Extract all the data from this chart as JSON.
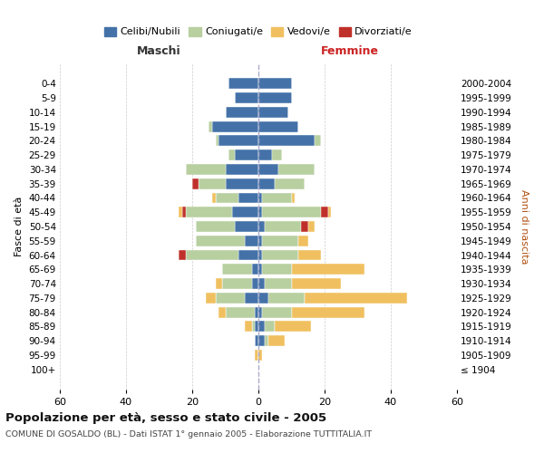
{
  "age_groups": [
    "100+",
    "95-99",
    "90-94",
    "85-89",
    "80-84",
    "75-79",
    "70-74",
    "65-69",
    "60-64",
    "55-59",
    "50-54",
    "45-49",
    "40-44",
    "35-39",
    "30-34",
    "25-29",
    "20-24",
    "15-19",
    "10-14",
    "5-9",
    "0-4"
  ],
  "birth_years": [
    "≤ 1904",
    "1905-1909",
    "1910-1914",
    "1915-1919",
    "1920-1924",
    "1925-1929",
    "1930-1934",
    "1935-1939",
    "1940-1944",
    "1945-1949",
    "1950-1954",
    "1955-1959",
    "1960-1964",
    "1965-1969",
    "1970-1974",
    "1975-1979",
    "1980-1984",
    "1985-1989",
    "1990-1994",
    "1995-1999",
    "2000-2004"
  ],
  "maschi": {
    "celibi": [
      0,
      0,
      1,
      1,
      1,
      4,
      2,
      2,
      6,
      4,
      7,
      8,
      6,
      10,
      10,
      7,
      12,
      14,
      10,
      7,
      9
    ],
    "coniugati": [
      0,
      0,
      0,
      1,
      9,
      9,
      9,
      9,
      16,
      15,
      12,
      14,
      7,
      8,
      12,
      2,
      1,
      1,
      0,
      0,
      0
    ],
    "vedovi": [
      0,
      1,
      0,
      2,
      2,
      3,
      2,
      0,
      0,
      0,
      0,
      1,
      1,
      0,
      0,
      0,
      0,
      0,
      0,
      0,
      0
    ],
    "divorziati": [
      0,
      0,
      0,
      0,
      0,
      0,
      0,
      0,
      2,
      0,
      0,
      1,
      0,
      2,
      0,
      0,
      0,
      0,
      0,
      0,
      0
    ]
  },
  "femmine": {
    "nubili": [
      0,
      0,
      2,
      2,
      1,
      3,
      2,
      1,
      1,
      1,
      2,
      1,
      1,
      5,
      6,
      4,
      17,
      12,
      9,
      10,
      10
    ],
    "coniugate": [
      0,
      0,
      1,
      3,
      9,
      11,
      8,
      9,
      11,
      11,
      11,
      18,
      9,
      9,
      11,
      3,
      2,
      0,
      0,
      0,
      0
    ],
    "vedove": [
      0,
      1,
      5,
      11,
      22,
      31,
      15,
      22,
      7,
      3,
      2,
      1,
      1,
      0,
      0,
      0,
      0,
      0,
      0,
      0,
      0
    ],
    "divorziate": [
      0,
      0,
      0,
      0,
      0,
      0,
      0,
      0,
      0,
      0,
      2,
      2,
      0,
      0,
      0,
      0,
      0,
      0,
      0,
      0,
      0
    ]
  },
  "colors": {
    "celibi": "#4472a8",
    "coniugati": "#b8cfa0",
    "vedovi": "#f0c060",
    "divorziati": "#c0302a"
  },
  "xlim": 60,
  "title": "Popolazione per età, sesso e stato civile - 2005",
  "subtitle": "COMUNE DI GOSALDO (BL) - Dati ISTAT 1° gennaio 2005 - Elaborazione TUTTITALIA.IT",
  "ylabel_left": "Fasce di età",
  "ylabel_right": "Anni di nascita",
  "xlabel_maschi": "Maschi",
  "xlabel_femmine": "Femmine"
}
